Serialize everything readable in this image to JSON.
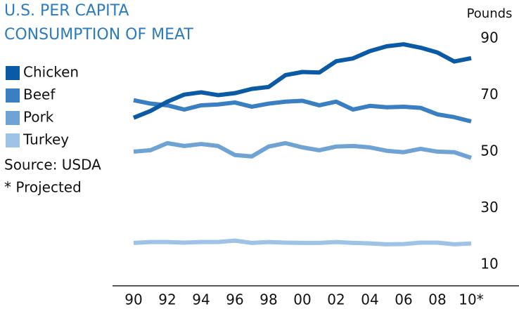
{
  "chart_data": {
    "type": "line",
    "title": [
      "U.S. PER CAPITA",
      "CONSUMPTION OF MEAT"
    ],
    "y_label": "Pounds",
    "annotations": [
      "Source: USDA",
      "* Projected"
    ],
    "categories": [
      "90",
      null,
      "92",
      null,
      "94",
      null,
      "96",
      null,
      "98",
      null,
      "00",
      null,
      "02",
      null,
      "04",
      null,
      "06",
      null,
      "08",
      null,
      "10*"
    ],
    "series": [
      {
        "name": "Chicken",
        "color": "#0b5aa6",
        "values": [
          62,
          64.4,
          67.7,
          70.2,
          71,
          70,
          70.7,
          72.2,
          72.9,
          77.1,
          78.2,
          78,
          82,
          83,
          85.6,
          87.3,
          88,
          86.8,
          85.1,
          81.9,
          83.1
        ]
      },
      {
        "name": "Beef",
        "color": "#3a7fc1",
        "values": [
          68.2,
          67,
          66.4,
          64.9,
          66.4,
          66.7,
          67.4,
          65.9,
          67,
          67.7,
          68,
          66.4,
          67.7,
          64.9,
          66.2,
          65.7,
          65.9,
          65.5,
          63.2,
          62.2,
          60.7
        ]
      },
      {
        "name": "Pork",
        "color": "#6ea3d4",
        "values": [
          50,
          50.5,
          53,
          52,
          52.7,
          52,
          48.8,
          48.3,
          51.8,
          53,
          51.5,
          50.5,
          51.8,
          52,
          51.5,
          50.3,
          49.8,
          51,
          50,
          49.8,
          47.8
        ]
      },
      {
        "name": "Turkey",
        "color": "#9ec3e6",
        "values": [
          17.7,
          18,
          18,
          17.8,
          18,
          18,
          18.5,
          17.7,
          18,
          17.8,
          17.7,
          17.7,
          18,
          17.7,
          17.5,
          17.2,
          17.3,
          17.8,
          17.8,
          17.2,
          17.5
        ]
      }
    ],
    "ylim": [
      2.5,
      100
    ],
    "yticks": [
      10,
      30,
      50,
      70,
      90
    ],
    "grid": false,
    "legend": "top-left",
    "title_color": "#2b7bc0"
  }
}
